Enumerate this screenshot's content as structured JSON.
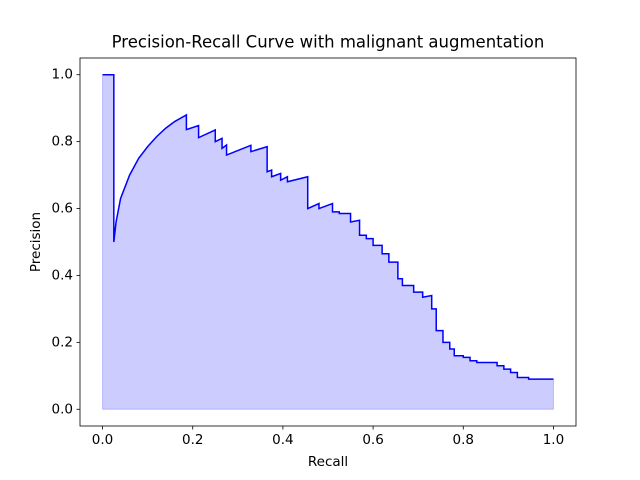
{
  "chart_data": {
    "type": "area-line",
    "title": "Precision-Recall Curve with malignant augmentation",
    "xlabel": "Recall",
    "ylabel": "Precision",
    "x": [
      0,
      0.025,
      0.025,
      0.03,
      0.04,
      0.06,
      0.08,
      0.1,
      0.12,
      0.14,
      0.16,
      0.186,
      0.186,
      0.213,
      0.213,
      0.25,
      0.25,
      0.265,
      0.265,
      0.275,
      0.275,
      0.329,
      0.329,
      0.365,
      0.365,
      0.375,
      0.375,
      0.395,
      0.395,
      0.41,
      0.41,
      0.455,
      0.455,
      0.48,
      0.48,
      0.51,
      0.51,
      0.525,
      0.525,
      0.55,
      0.55,
      0.57,
      0.57,
      0.585,
      0.585,
      0.6,
      0.6,
      0.62,
      0.62,
      0.635,
      0.635,
      0.655,
      0.655,
      0.665,
      0.665,
      0.69,
      0.69,
      0.71,
      0.71,
      0.73,
      0.73,
      0.74,
      0.74,
      0.755,
      0.755,
      0.77,
      0.77,
      0.78,
      0.78,
      0.8,
      0.8,
      0.815,
      0.815,
      0.83,
      0.83,
      0.875,
      0.875,
      0.89,
      0.89,
      0.905,
      0.905,
      0.92,
      0.92,
      0.945,
      0.945,
      1.0
    ],
    "values": [
      1.0,
      1.0,
      0.5,
      0.56,
      0.63,
      0.7,
      0.75,
      0.785,
      0.815,
      0.84,
      0.86,
      0.88,
      0.836,
      0.848,
      0.812,
      0.835,
      0.8,
      0.81,
      0.78,
      0.79,
      0.76,
      0.789,
      0.77,
      0.785,
      0.71,
      0.715,
      0.695,
      0.705,
      0.685,
      0.695,
      0.68,
      0.695,
      0.6,
      0.615,
      0.6,
      0.615,
      0.59,
      0.59,
      0.585,
      0.585,
      0.56,
      0.565,
      0.52,
      0.52,
      0.51,
      0.51,
      0.49,
      0.49,
      0.465,
      0.465,
      0.44,
      0.44,
      0.39,
      0.39,
      0.37,
      0.37,
      0.35,
      0.35,
      0.335,
      0.34,
      0.3,
      0.3,
      0.235,
      0.235,
      0.2,
      0.2,
      0.18,
      0.18,
      0.16,
      0.16,
      0.155,
      0.155,
      0.145,
      0.145,
      0.14,
      0.14,
      0.13,
      0.13,
      0.12,
      0.12,
      0.11,
      0.11,
      0.095,
      0.095,
      0.09,
      0.09
    ],
    "color": "blue",
    "fill": true,
    "fill_alpha": 0.2,
    "xlim": [
      -0.05,
      1.05
    ],
    "ylim": [
      -0.05,
      1.05
    ],
    "xticks": [
      {
        "value": 0,
        "label": "0.0"
      },
      0.2,
      0.4,
      0.6,
      0.8,
      {
        "value": 1,
        "label": "1.0"
      }
    ],
    "yticks": [
      {
        "value": 0,
        "label": "0.0"
      },
      0.2,
      0.4,
      0.6,
      0.8,
      {
        "value": 1,
        "label": "1.0"
      }
    ],
    "grid": false
  }
}
